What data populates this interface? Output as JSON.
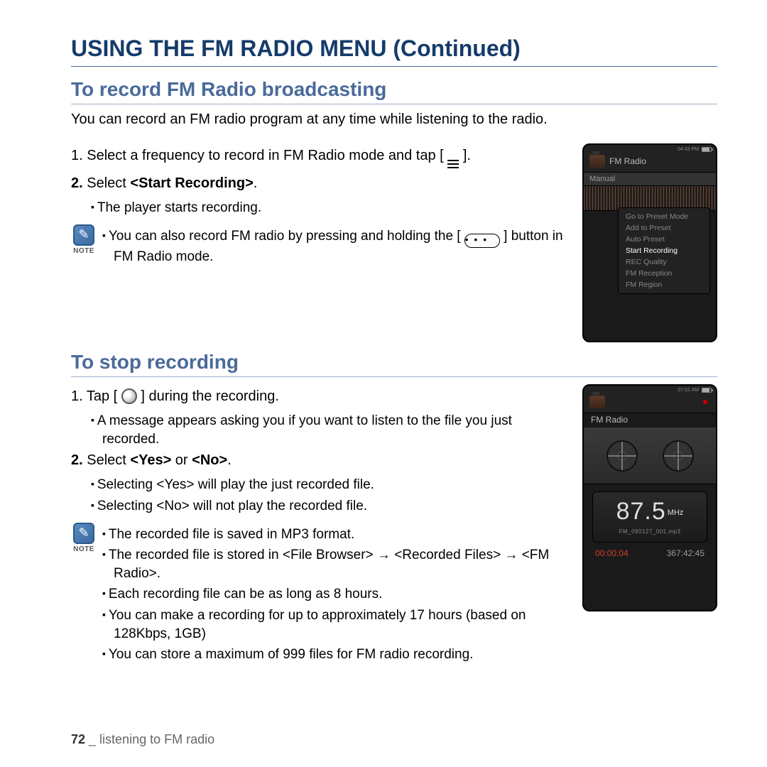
{
  "page": {
    "title": "USING THE FM RADIO MENU (Continued)",
    "footer_page": "72",
    "footer_sep": " _ ",
    "footer_text": "listening to FM radio"
  },
  "section1": {
    "title": "To record FM Radio broadcasting",
    "intro": "You can record an FM radio program at any time while listening to the radio.",
    "step1_a": "1. Select a frequency to record in FM Radio mode and tap [ ",
    "step1_b": " ].",
    "step2_a": "2. ",
    "step2_b": "Select ",
    "step2_c": "<Start Recording>",
    "step2_d": ".",
    "bullet1": "The player starts recording.",
    "note_a": "You can also record FM radio by pressing and holding the [ ",
    "note_b": " ] button in FM Radio mode.",
    "pill": "• • •"
  },
  "section2": {
    "title": "To stop recording",
    "step1_a": "1. Tap [ ",
    "step1_b": " ] during the recording.",
    "bullet1": "A message appears asking you if you want to listen to the file you just recorded.",
    "step2_a": "2. ",
    "step2_b": "Select ",
    "step2_c": "<Yes>",
    "step2_d": " or ",
    "step2_e": "<No>",
    "step2_f": ".",
    "bullet2": "Selecting <Yes> will play the just recorded file.",
    "bullet3": "Selecting <No> will not play the recorded file.",
    "note_items": {
      "n1": "The recorded file is saved in MP3 format.",
      "n2": "The recorded file is stored in <File Browser> → <Recorded Files> → <FM Radio>.",
      "n3": "Each recording file can be as long as 8 hours.",
      "n4": "You can make a recording for up to approximately 17 hours (based on 128Kbps, 1GB)",
      "n5": "You can store a maximum of 999 files for FM radio recording."
    }
  },
  "device1": {
    "time": "04:43 PM",
    "title": "FM Radio",
    "sub": "Manual",
    "menu": {
      "m1": "Go to Preset Mode",
      "m2": "Add to Preset",
      "m3": "Auto Preset",
      "m4": "Start Recording",
      "m5": "REC Quality",
      "m6": "FM Reception",
      "m7": "FM Region"
    }
  },
  "device2": {
    "time": "07:51 AM",
    "title": "FM Radio",
    "freq": "87.5",
    "unit": "MHz",
    "filename": "FM_090127_001.mp3",
    "elapsed": "00:00:04",
    "remain": "367:42:45"
  },
  "labels": {
    "note": "NOTE"
  }
}
